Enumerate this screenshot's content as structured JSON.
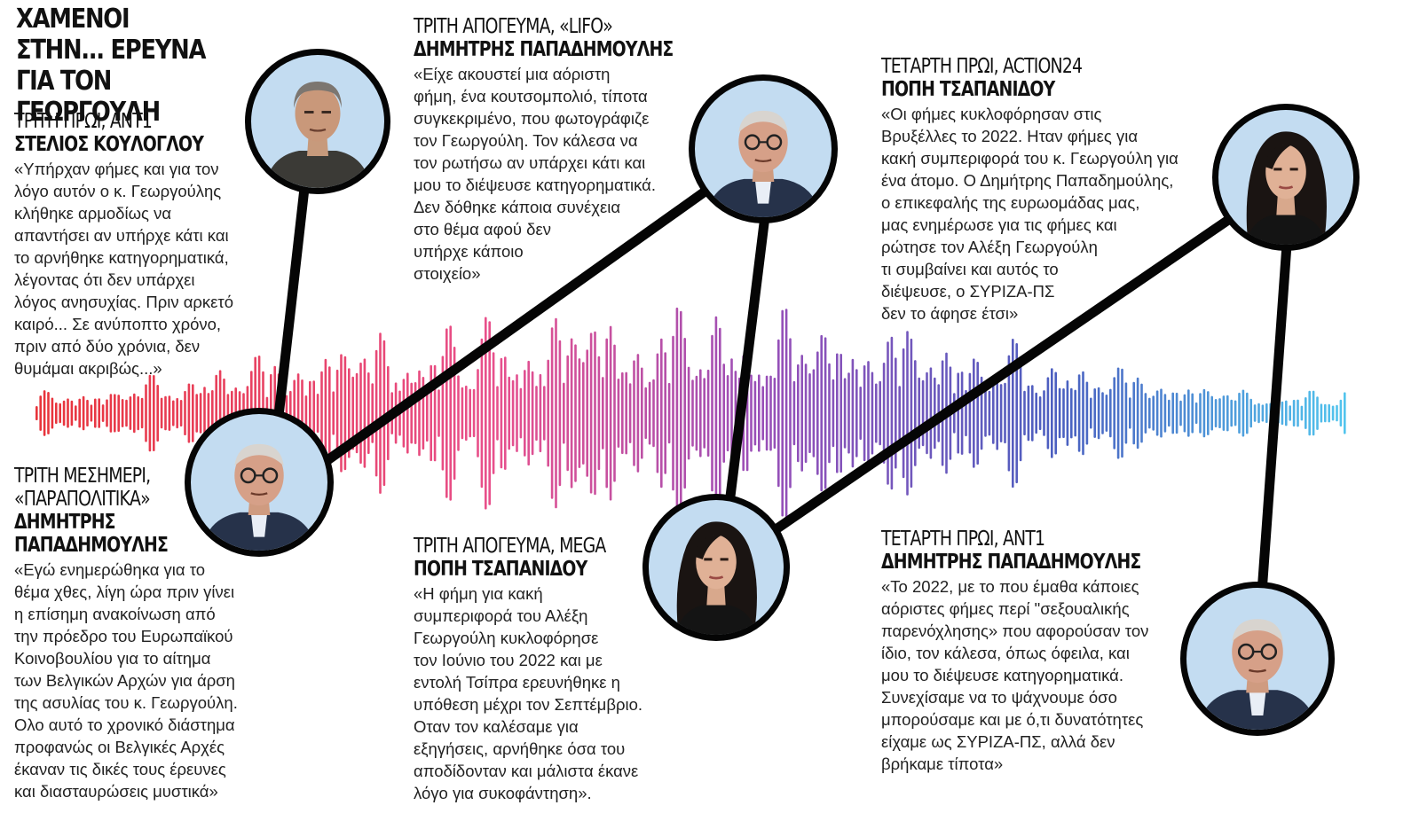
{
  "headline": [
    "ΧΑΜΕΝΟΙ",
    "ΣΤΗΝ... ΕΡΕΥΝΑ",
    "ΓΙΑ ΤΟΝ ΓΕΩΡΓΟΥΛΗ"
  ],
  "colors": {
    "wave_start": "#e8343a",
    "wave_mid1": "#e8508c",
    "wave_mid2": "#9a4fb8",
    "wave_mid3": "#4a5fc0",
    "wave_end": "#52c6ee",
    "connector": "#050505",
    "portrait_bg": "#c3dcf1"
  },
  "statements": [
    {
      "time": "ΤΡΙΤΗ ΠΡΩΙ, ΑΝΤ1",
      "name": "ΣΤΕΛΙΟΣ ΚΟΥΛΟΓΛΟΥ",
      "quote": "«Υπήρχαν φήμες και για τον\nλόγο αυτόν ο κ. Γεωργούλης\nκλήθηκε αρμοδίως να\nαπαντήσει αν υπήρχε κάτι και\nτο αρνήθηκε κατηγορηματικά,\nλέγοντας ότι δεν υπάρχει\nλόγος ανησυχίας. Πριν αρκετό\nκαιρό... Σε ανύποπτο χρόνο,\nπριν από δύο χρόνια, δεν\nθυμάμαι ακριβώς...»",
      "portrait": "man-grey-hair-portrait"
    },
    {
      "time": "ΤΡΙΤΗ ΜΕΣΗΜΕΡΙ,\n«ΠΑΡΑΠΟΛΙΤΙΚΑ»",
      "name": "ΔΗΜΗΤΡΗΣ\nΠΑΠΑΔΗΜΟΥΛΗΣ",
      "quote": "«Εγώ ενημερώθηκα για το\nθέμα χθες, λίγη ώρα πριν γίνει\nη επίσημη ανακοίνωση από\nτην πρόεδρο του Ευρωπαϊκού\nΚοινοβουλίου για το αίτημα\nτων Βελγικών Αρχών για άρση\nτης ασυλίας του κ. Γεωργούλη.\nΟλο αυτό το χρονικό διάστημα\nπροφανώς οι Βελγικές Αρχές\nέκαναν τις δικές τους έρευνες\nκαι διασταυρώσεις μυστικά»",
      "portrait": "man-glasses-portrait"
    },
    {
      "time": "ΤΡΙΤΗ ΑΠΟΓΕΥΜΑ, «LIFO»",
      "name": "ΔΗΜΗΤΡΗΣ ΠΑΠΑΔΗΜΟΥΛΗΣ",
      "quote": "«Είχε ακουστεί μια αόριστη\nφήμη, ένα κουτσομπολιό, τίποτα\nσυγκεκριμένο, που φωτογράφιζε\nτον Γεωργούλη. Τον κάλεσα να\nτον ρωτήσω αν υπάρχει κάτι και\nμου το διέψευσε κατηγορηματικά.\nΔεν δόθηκε κάποια συνέχεια\nστο θέμα αφού δεν\n υπήρχε κάποιο\nστοιχείο»",
      "portrait": "man-glasses-portrait"
    },
    {
      "time": "ΤΡΙΤΗ ΑΠΟΓΕΥΜΑ, MEGA",
      "name": "ΠΟΠΗ ΤΣΑΠΑΝΙΔΟΥ",
      "quote": "«Η φήμη για κακή\nσυμπεριφορά του Αλέξη\nΓεωργούλη κυκλοφόρησε\nτον Ιούνιο του 2022 και με\nεντολή Τσίπρα ερευνήθηκε η\nυπόθεση μέχρι τον Σεπτέμβριο.\nΟταν τον καλέσαμε για\nεξηγήσεις, αρνήθηκε όσα του\nαποδίδονταν και μάλιστα έκανε\nλόγο για συκοφάντηση».",
      "portrait": "woman-dark-hair-portrait"
    },
    {
      "time": "ΤΕΤΑΡΤΗ ΠΡΩΙ, ACTION24",
      "name": "ΠΟΠΗ ΤΣΑΠΑΝΙΔΟΥ",
      "quote": "«Οι φήμες κυκλοφόρησαν στις\nΒρυξέλλες το 2022. Ηταν φήμες για\nκακή συμπεριφορά του κ. Γεωργούλη για\nένα άτομο. Ο Δημήτρης Παπαδημούλης,\nο επικεφαλής της ευρωομάδας μας,\nμας ενημέρωσε για τις φήμες και\nρώτησε τον Αλέξη Γεωργούλη\nτι συμβαίνει και αυτός το\nδιέψευσε, ο ΣΥΡΙΖΑ-ΠΣ\nδεν το άφησε έτσι»",
      "portrait": "woman-dark-hair-portrait"
    },
    {
      "time": "ΤΕΤΑΡΤΗ ΠΡΩΙ, ΑΝΤ1",
      "name": "ΔΗΜΗΤΡΗΣ ΠΑΠΑΔΗΜΟΥΛΗΣ",
      "quote": "«Το 2022, με το που έμαθα κάποιες\nαόριστες φήμες περί \"σεξουαλικής\nπαρενόχλησης» που αφορούσαν τον\nίδιο, τον κάλεσα, όπως όφειλα, και\nμου το διέψευσε κατηγορηματικά.\nΣυνεχίσαμε να το ψάχνουμε όσο\nμπορούσαμε και με ό,τι δυνατότητες\nείχαμε ως ΣΥΡΙΖΑ-ΠΣ, αλλά δεν\nβρήκαμε τίποτα»",
      "portrait": "man-glasses-portrait"
    }
  ]
}
